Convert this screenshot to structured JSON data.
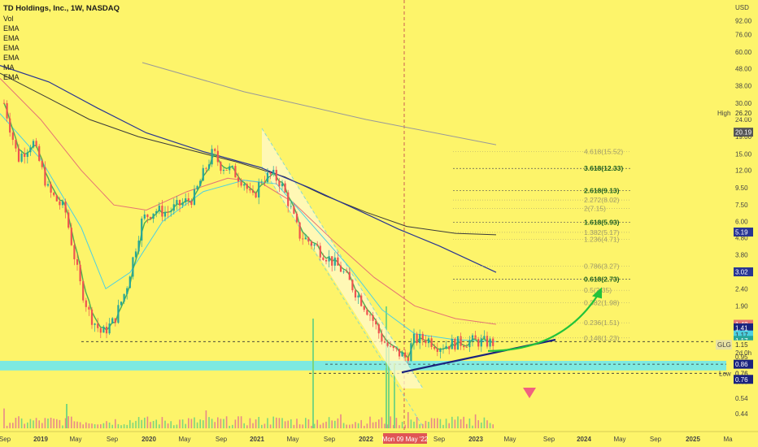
{
  "header": {
    "title": "TD Holdings, Inc., 1W, NASDAQ",
    "indicators": [
      "Vol",
      "EMA",
      "EMA",
      "EMA",
      "EMA",
      "MA",
      "EMA"
    ]
  },
  "axis": {
    "currency": "USD",
    "price_ticks": [
      "92.00",
      "76.00",
      "60.00",
      "48.00",
      "38.00",
      "30.00",
      "24.00",
      "19.00",
      "15.00",
      "12.00",
      "9.50",
      "7.50",
      "6.00",
      "4.80",
      "3.80",
      "3.00",
      "2.40",
      "1.90",
      "1.50",
      "1.20",
      "0.95",
      "0.76",
      "0.68",
      "0.54",
      "0.44"
    ],
    "time_ticks": [
      "Sep",
      "2019",
      "May",
      "Sep",
      "2020",
      "May",
      "Sep",
      "2021",
      "May",
      "Sep",
      "2022",
      "Mon 09 May '22",
      "Sep",
      "2023",
      "May",
      "Sep",
      "2024",
      "May",
      "Sep",
      "2025",
      "Ma"
    ]
  },
  "price_tags": {
    "high_label": "High",
    "high_value": "26.20",
    "p1": "20.19",
    "p2": "5.19",
    "p3": "3.02",
    "p4": "1.48",
    "p5": "1.41",
    "p6": "1.17",
    "p7": "1.17",
    "glg_label": "GLG",
    "glg_value": "1.15",
    "glg_time": "2d 0h",
    "p8": "0.86",
    "low_label": "Low",
    "low_value": "0.76",
    "p9": "0.76"
  },
  "colors": {
    "background": "#fdf46a",
    "up_candle": "#26a69a",
    "down_candle": "#ef5350",
    "ema_fast": "#4caf50",
    "ema_cyan": "#4dd0e1",
    "ema_red": "#e57373",
    "ema_navy": "#283593",
    "ma_black": "#3a3a3a",
    "accent_green": "#22c33a"
  },
  "chart_data": {
    "type": "candlestick",
    "title": "TD Holdings, Inc., 1W, NASDAQ",
    "yscale": "log",
    "ylim": [
      0.42,
      100
    ],
    "fib_levels": [
      {
        "label": "4.618(15.52)",
        "value": 15.52
      },
      {
        "label": "3.618(12.33)",
        "value": 12.33
      },
      {
        "label": "2.618(9.13)",
        "value": 9.13
      },
      {
        "label": "2.272(8.02)",
        "value": 8.02
      },
      {
        "label": "2(7.15)",
        "value": 7.15
      },
      {
        "label": "1.618(5.93)",
        "value": 5.93
      },
      {
        "label": "1.382(5.17)",
        "value": 5.17
      },
      {
        "label": "1.236(4.71)",
        "value": 4.71
      },
      {
        "label": "0.786(3.27)",
        "value": 3.27
      },
      {
        "label": "0.618(2.73)",
        "value": 2.73
      },
      {
        "label": "0.5(2.35)",
        "value": 2.35
      },
      {
        "label": "0.382(1.98)",
        "value": 1.98
      },
      {
        "label": "0.236(1.51)",
        "value": 1.51
      },
      {
        "label": "0.148(1.23)",
        "value": 1.23
      }
    ],
    "support_levels": [
      1.17,
      0.86,
      0.76
    ],
    "last_price": 1.15,
    "high": 26.2,
    "low": 0.76
  }
}
